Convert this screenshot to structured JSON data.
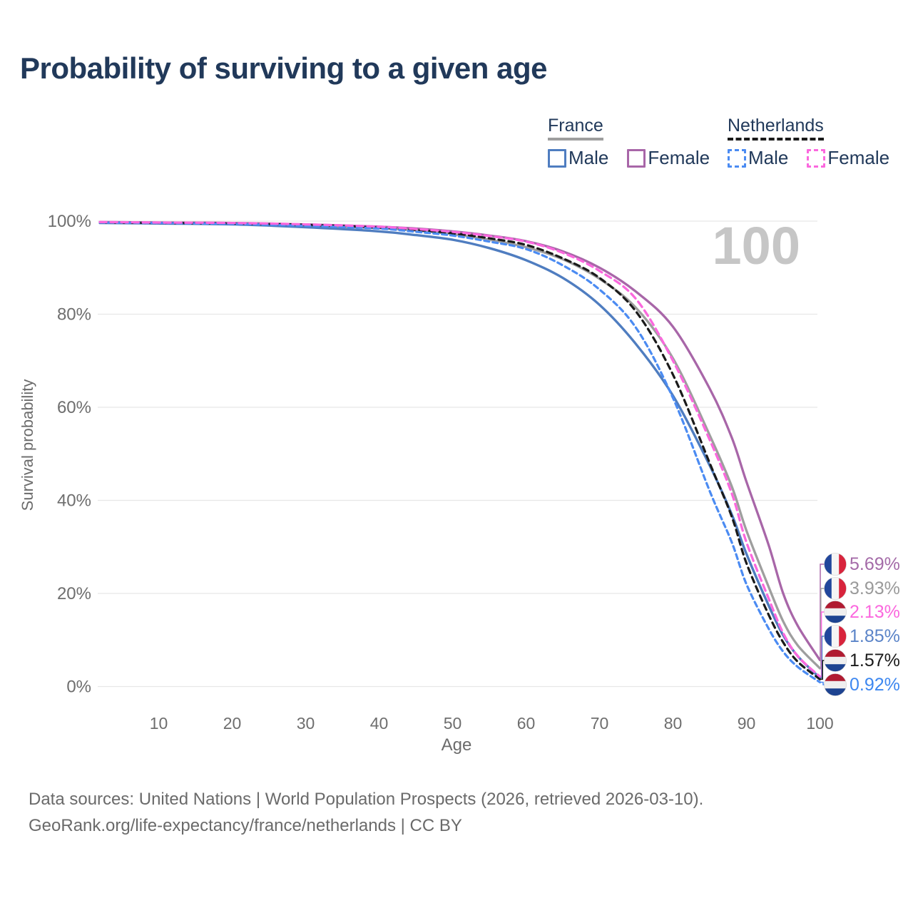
{
  "title": "Probability of surviving to a given age",
  "colors": {
    "background": "#ffffff",
    "title": "#21395a",
    "legend_text": "#21395a",
    "axis_tick": "#6e6e6e",
    "axis_title": "#6b6b6b",
    "gridline": "#e7e7e7",
    "watermark": "#c6c6c6",
    "footer_text": "#6a6a6a"
  },
  "legend": {
    "groups": [
      {
        "country": "France",
        "line_color": "#9e9e9e",
        "line_dashed": false,
        "items": [
          {
            "label": "Male",
            "color": "#4f7dc0",
            "dashed": false
          },
          {
            "label": "Female",
            "color": "#a866a8",
            "dashed": false
          }
        ]
      },
      {
        "country": "Netherlands",
        "line_color": "#1a1a1a",
        "line_dashed": true,
        "items": [
          {
            "label": "Male",
            "color": "#4b8bf2",
            "dashed": true
          },
          {
            "label": "Female",
            "color": "#fb68de",
            "dashed": true
          }
        ]
      }
    ]
  },
  "footer": {
    "line1": "Data sources: United Nations | World Population Prospects (2026, retrieved 2026-03-10).",
    "line2": "GeoRank.org/life-expectancy/france/netherlands | CC BY"
  },
  "chart_data": {
    "type": "line",
    "title": "Probability of surviving to a given age",
    "xlabel": "Age",
    "ylabel": "Survival probability",
    "xlim": [
      0,
      102
    ],
    "ylim": [
      0,
      100
    ],
    "grid": "horizontal",
    "watermark": "100",
    "x_ticks": [
      10,
      20,
      30,
      40,
      50,
      60,
      70,
      80,
      90,
      100
    ],
    "y_ticks": [
      0,
      20,
      40,
      60,
      80,
      100
    ],
    "y_tick_labels": [
      "0%",
      "20%",
      "40%",
      "60%",
      "80%",
      "100%"
    ],
    "series": [
      {
        "name": "France Female",
        "country": "France",
        "sex": "female",
        "color": "#a866a8",
        "dashed": false,
        "dash": null,
        "width": 3.3,
        "z": 1,
        "flag": "france",
        "end_label": "5.69%",
        "label_color": "#a46ba8",
        "points": [
          [
            2,
            99.8
          ],
          [
            10,
            99.7
          ],
          [
            20,
            99.6
          ],
          [
            30,
            99.3
          ],
          [
            40,
            98.8
          ],
          [
            45,
            98.4
          ],
          [
            50,
            97.8
          ],
          [
            55,
            96.9
          ],
          [
            60,
            95.7
          ],
          [
            65,
            93.5
          ],
          [
            70,
            90
          ],
          [
            75,
            84.8
          ],
          [
            80,
            77.3
          ],
          [
            85,
            64
          ],
          [
            88,
            53.5
          ],
          [
            90,
            44
          ],
          [
            93,
            30.5
          ],
          [
            95,
            20
          ],
          [
            97,
            13
          ],
          [
            100,
            5.69
          ]
        ]
      },
      {
        "name": "France Both sexes",
        "country": "France",
        "sex": "both",
        "color": "#9e9e9e",
        "dashed": false,
        "dash": null,
        "width": 3.3,
        "z": 0,
        "flag": "france",
        "end_label": "3.93%",
        "label_color": "#9a9a9a",
        "points": [
          [
            2,
            99.7
          ],
          [
            10,
            99.6
          ],
          [
            20,
            99.5
          ],
          [
            30,
            99.1
          ],
          [
            40,
            98.5
          ],
          [
            45,
            98
          ],
          [
            50,
            97.2
          ],
          [
            55,
            96
          ],
          [
            60,
            94.4
          ],
          [
            65,
            91.8
          ],
          [
            70,
            87.6
          ],
          [
            75,
            81.3
          ],
          [
            80,
            70.5
          ],
          [
            85,
            54
          ],
          [
            88,
            43
          ],
          [
            90,
            33.5
          ],
          [
            93,
            21.5
          ],
          [
            95,
            14
          ],
          [
            97,
            8.8
          ],
          [
            100,
            3.93
          ]
        ]
      },
      {
        "name": "Netherlands Female",
        "country": "Netherlands",
        "sex": "female",
        "color": "#fb68de",
        "dashed": true,
        "dash": "9 6",
        "width": 3.3,
        "z": 5,
        "flag": "netherlands",
        "end_label": "2.13%",
        "label_color": "#fb68de",
        "points": [
          [
            2,
            99.8
          ],
          [
            10,
            99.7
          ],
          [
            20,
            99.6
          ],
          [
            30,
            99.3
          ],
          [
            40,
            98.8
          ],
          [
            45,
            98.3
          ],
          [
            50,
            97.7
          ],
          [
            55,
            96.8
          ],
          [
            60,
            95.6
          ],
          [
            65,
            93.2
          ],
          [
            70,
            89.3
          ],
          [
            75,
            83.2
          ],
          [
            80,
            70
          ],
          [
            85,
            53
          ],
          [
            88,
            41.5
          ],
          [
            90,
            31
          ],
          [
            93,
            19
          ],
          [
            95,
            11.5
          ],
          [
            97,
            6.5
          ],
          [
            100,
            2.13
          ]
        ]
      },
      {
        "name": "France Male",
        "country": "France",
        "sex": "male",
        "color": "#4f7dc0",
        "dashed": false,
        "dash": null,
        "width": 3.4,
        "z": 2,
        "flag": "france",
        "end_label": "1.85%",
        "label_color": "#5b84c8",
        "points": [
          [
            2,
            99.6
          ],
          [
            10,
            99.5
          ],
          [
            20,
            99.3
          ],
          [
            30,
            98.7
          ],
          [
            40,
            97.8
          ],
          [
            45,
            97
          ],
          [
            50,
            96
          ],
          [
            55,
            94.2
          ],
          [
            60,
            91.6
          ],
          [
            65,
            87.8
          ],
          [
            70,
            82
          ],
          [
            75,
            73.5
          ],
          [
            80,
            62.5
          ],
          [
            85,
            47.5
          ],
          [
            88,
            37
          ],
          [
            90,
            28.5
          ],
          [
            93,
            17.5
          ],
          [
            95,
            11
          ],
          [
            97,
            6.5
          ],
          [
            100,
            1.85
          ]
        ]
      },
      {
        "name": "Netherlands Both sexes",
        "country": "Netherlands",
        "sex": "both",
        "color": "#1a1a1a",
        "dashed": true,
        "dash": "8 6",
        "width": 3.2,
        "z": 3,
        "flag": "netherlands",
        "end_label": "1.57%",
        "label_color": "#1a1a1a",
        "points": [
          [
            2,
            99.7
          ],
          [
            10,
            99.6
          ],
          [
            20,
            99.5
          ],
          [
            30,
            99.2
          ],
          [
            40,
            98.6
          ],
          [
            45,
            98.1
          ],
          [
            50,
            97.4
          ],
          [
            55,
            96.3
          ],
          [
            60,
            94.9
          ],
          [
            65,
            92
          ],
          [
            70,
            87.8
          ],
          [
            75,
            80.5
          ],
          [
            80,
            67
          ],
          [
            85,
            48
          ],
          [
            88,
            36.5
          ],
          [
            90,
            26.5
          ],
          [
            93,
            15.5
          ],
          [
            95,
            9.5
          ],
          [
            97,
            5.3
          ],
          [
            100,
            1.57
          ]
        ]
      },
      {
        "name": "Netherlands Male",
        "country": "Netherlands",
        "sex": "male",
        "color": "#4b8bf2",
        "dashed": true,
        "dash": "7 5",
        "width": 3.2,
        "z": 4,
        "flag": "netherlands",
        "end_label": "0.92%",
        "label_color": "#3d87f0",
        "points": [
          [
            2,
            99.7
          ],
          [
            10,
            99.6
          ],
          [
            20,
            99.4
          ],
          [
            30,
            99
          ],
          [
            40,
            98.4
          ],
          [
            45,
            97.7
          ],
          [
            50,
            96.9
          ],
          [
            55,
            95.6
          ],
          [
            60,
            94
          ],
          [
            65,
            90.5
          ],
          [
            70,
            85.3
          ],
          [
            75,
            77
          ],
          [
            80,
            62
          ],
          [
            85,
            42
          ],
          [
            88,
            31
          ],
          [
            90,
            22
          ],
          [
            93,
            12.5
          ],
          [
            95,
            7.5
          ],
          [
            97,
            4.2
          ],
          [
            100,
            0.92
          ]
        ]
      }
    ],
    "flag_colors": {
      "france": [
        "#21479c",
        "#f5f5f5",
        "#d8243c"
      ],
      "netherlands": [
        "#b01b31",
        "#efefef",
        "#1d4391"
      ]
    }
  }
}
